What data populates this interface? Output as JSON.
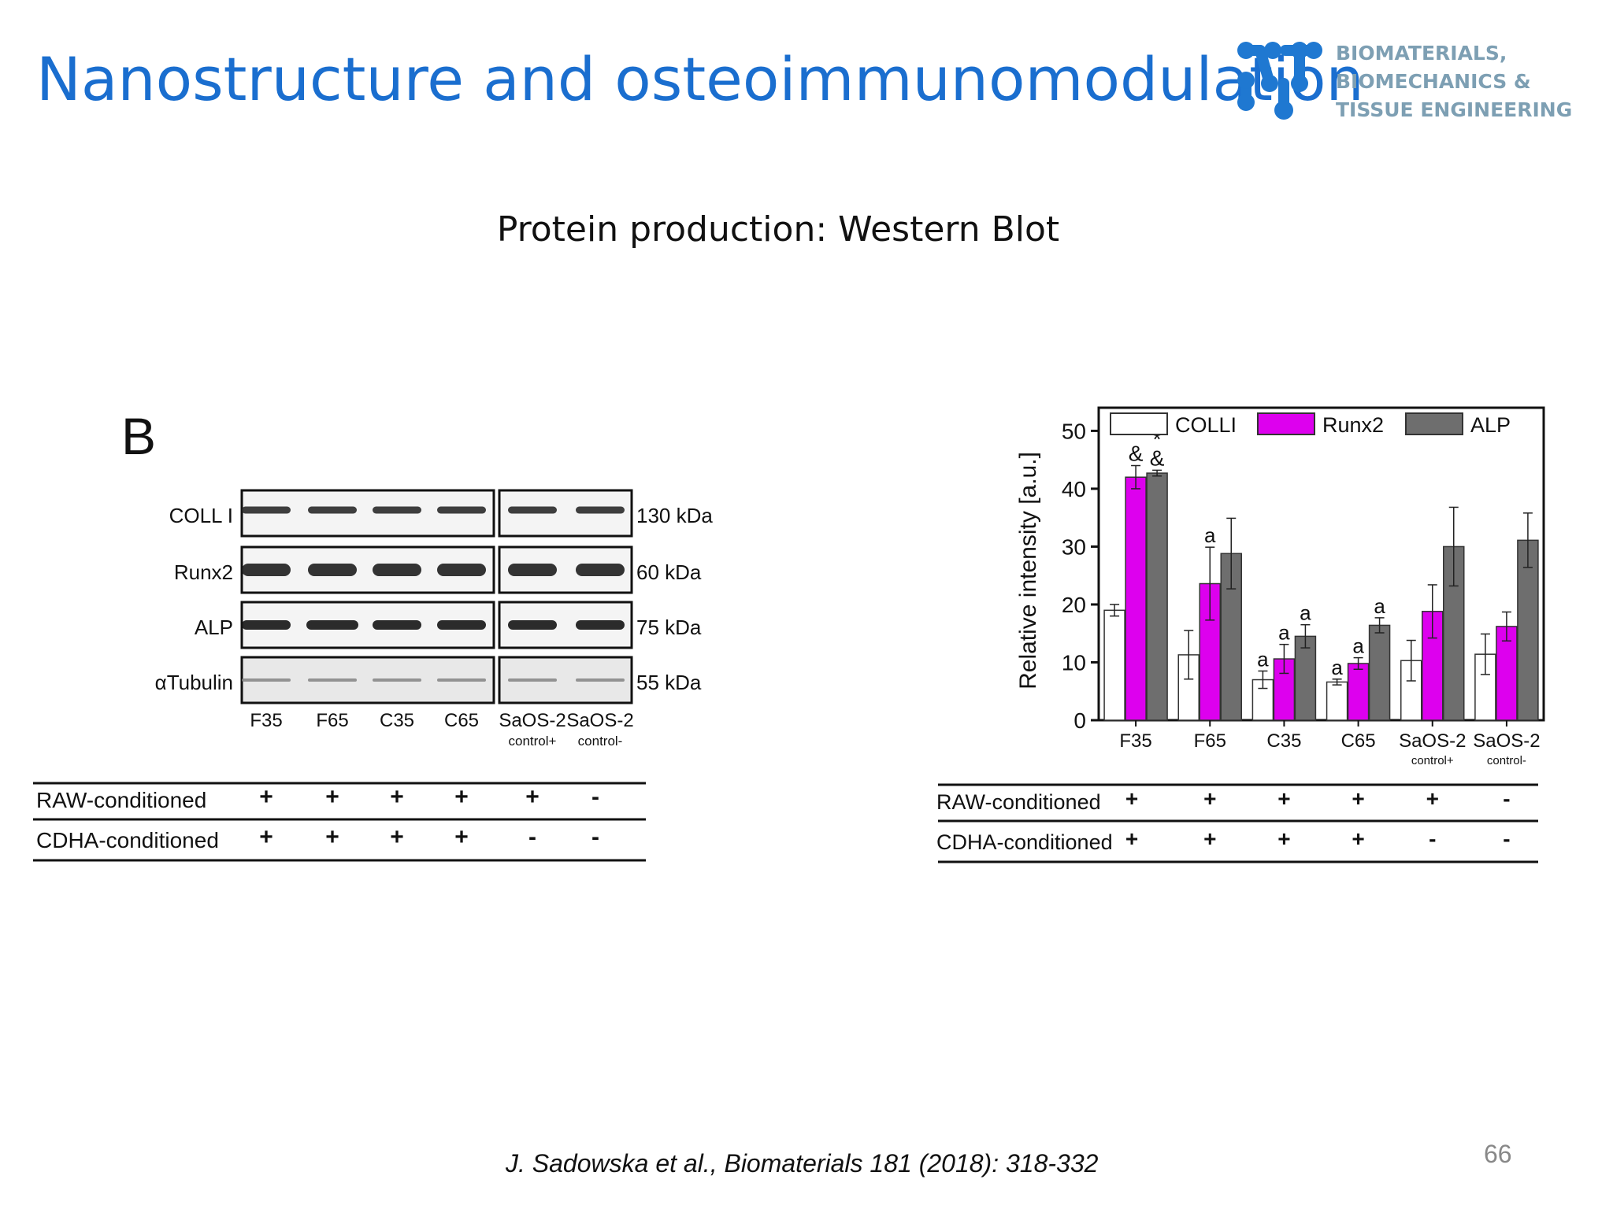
{
  "slide": {
    "title": "Nanostructure and osteoimmunomodulation",
    "subtitle": "Protein production: Western Blot",
    "citation": "J. Sadowska et al., Biomaterials 181 (2018):  318-332",
    "page_number": "66",
    "logo": {
      "lines": [
        "BIOMATERIALS,",
        "BIOMECHANICS &",
        "TISSUE ENGINEERING"
      ],
      "color": "#1f78d1"
    }
  },
  "blot_panel": {
    "panel_label": "B",
    "rows": [
      {
        "label": "COLL I",
        "kda": "130  kDa"
      },
      {
        "label": "Runx2",
        "kda": "60 kDa"
      },
      {
        "label": "ALP",
        "kda": "75 kDa"
      },
      {
        "label": "αTubulin",
        "kda": "55 kDa"
      }
    ],
    "lanes": [
      {
        "name": "F35",
        "sub": ""
      },
      {
        "name": "F65",
        "sub": ""
      },
      {
        "name": "C35",
        "sub": ""
      },
      {
        "name": "C65",
        "sub": ""
      },
      {
        "name": "SaOS-2",
        "sub": "control+"
      },
      {
        "name": "SaOS-2",
        "sub": "control-"
      }
    ],
    "conditions": [
      {
        "label": "RAW-conditioned",
        "values": [
          "+",
          "+",
          "+",
          "+",
          "+",
          "-"
        ]
      },
      {
        "label": "CDHA-conditioned",
        "values": [
          "+",
          "+",
          "+",
          "+",
          "-",
          "-"
        ]
      }
    ]
  },
  "chart_data": {
    "type": "bar",
    "ylabel": "Relative intensity [a.u.]",
    "ylim": [
      0,
      54
    ],
    "yticks": [
      0,
      10,
      20,
      30,
      40,
      50
    ],
    "categories": [
      "F35",
      "F65",
      "C35",
      "C65",
      "SaOS-2",
      "SaOS-2"
    ],
    "category_subs": [
      "",
      "",
      "",
      "",
      "control+",
      "control-"
    ],
    "legend_position": "top",
    "series": [
      {
        "name": "COLLI",
        "color": "#ffffff",
        "values": [
          19,
          11.3,
          7,
          6.6,
          10.3,
          11.4
        ],
        "errors": [
          1,
          4.2,
          1.5,
          0.5,
          3.5,
          3.5
        ]
      },
      {
        "name": "Runx2",
        "color": "#dd00ee",
        "values": [
          42,
          23.6,
          10.6,
          9.8,
          18.8,
          16.2
        ],
        "errors": [
          2,
          6.3,
          2.5,
          1,
          4.6,
          2.5
        ]
      },
      {
        "name": "ALP",
        "color": "#6e6e6e",
        "values": [
          42.7,
          28.8,
          14.5,
          16.4,
          30,
          31.1
        ],
        "errors": [
          0.5,
          6.1,
          2,
          1.3,
          6.8,
          4.7
        ]
      }
    ],
    "annotations": [
      {
        "category": 0,
        "series": 1,
        "text": "*&"
      },
      {
        "category": 0,
        "series": 2,
        "text": "*&"
      },
      {
        "category": 1,
        "series": 1,
        "text": "a"
      },
      {
        "category": 2,
        "series": 0,
        "text": "a"
      },
      {
        "category": 2,
        "series": 1,
        "text": "a"
      },
      {
        "category": 2,
        "series": 2,
        "text": "a"
      },
      {
        "category": 3,
        "series": 0,
        "text": "a"
      },
      {
        "category": 3,
        "series": 1,
        "text": "a"
      },
      {
        "category": 3,
        "series": 2,
        "text": "a"
      }
    ],
    "conditions": [
      {
        "label": "RAW-conditioned",
        "values": [
          "+",
          "+",
          "+",
          "+",
          "+",
          "-"
        ]
      },
      {
        "label": "CDHA-conditioned",
        "values": [
          "+",
          "+",
          "+",
          "+",
          "-",
          "-"
        ]
      }
    ]
  }
}
